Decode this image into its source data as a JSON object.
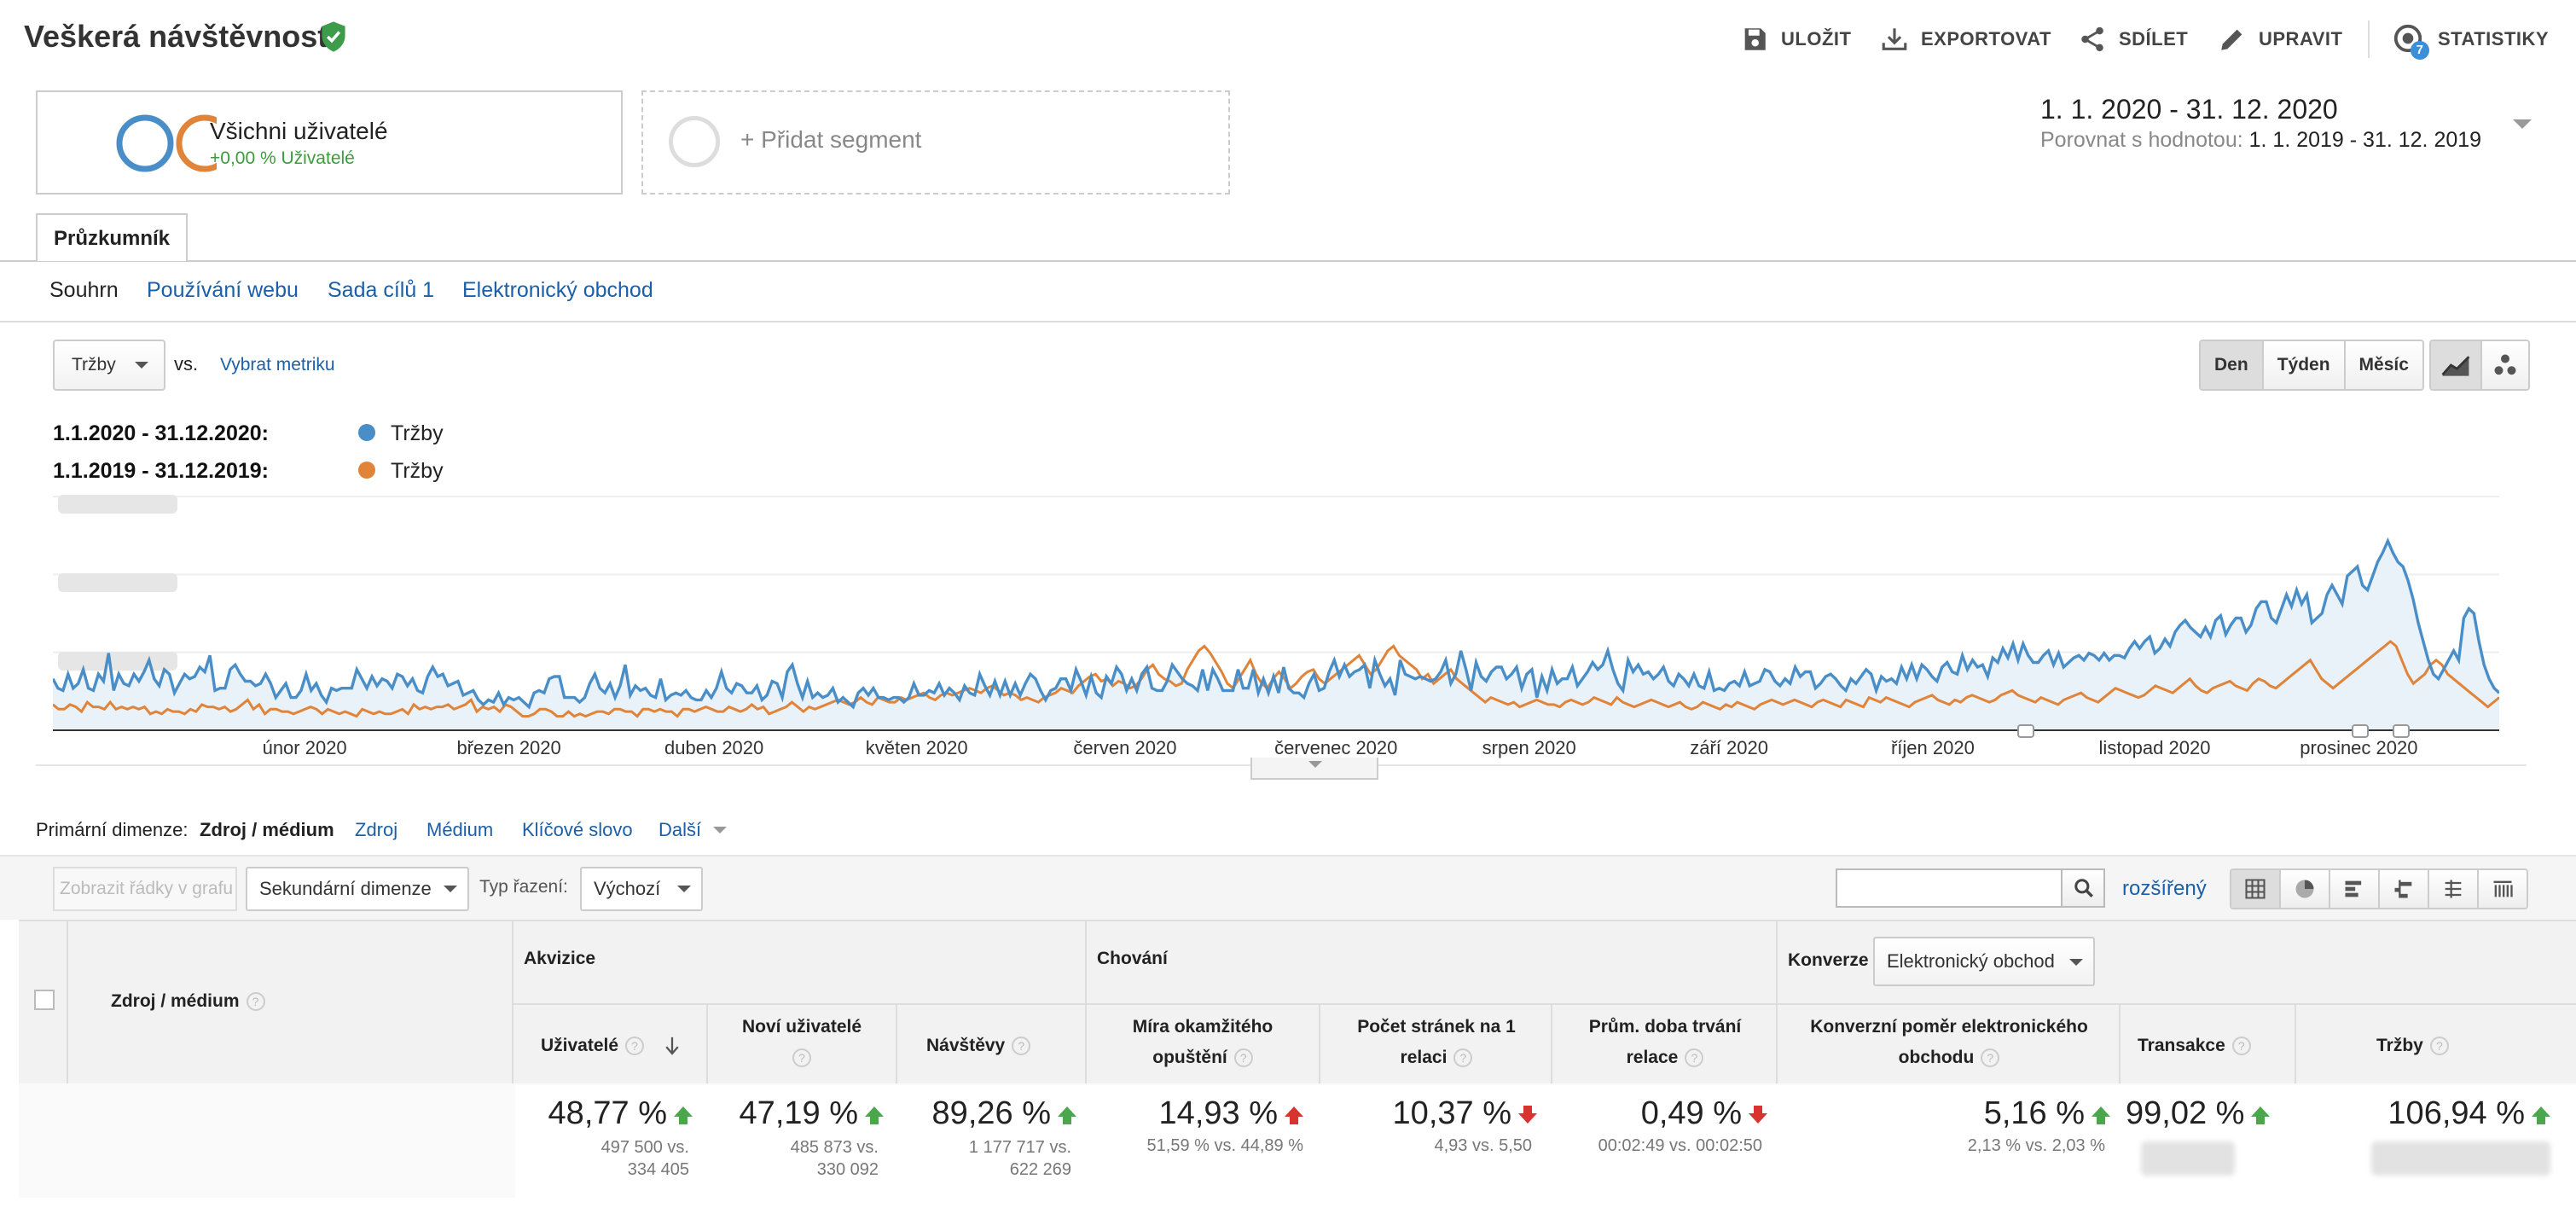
{
  "header": {
    "title": "Veškerá návštěvnost",
    "buttons": {
      "save": "ULOŽIT",
      "export": "EXPORTOVAT",
      "share": "SDÍLET",
      "edit": "UPRAVIT",
      "insights": "STATISTIKY"
    },
    "insights_badge": "7"
  },
  "segments": {
    "active": {
      "name": "Všichni uživatelé",
      "change": "+0,00 % Uživatelé",
      "colors": [
        "#4a90c8",
        "#e08a3c"
      ]
    },
    "add_label": "+ Přidat segment"
  },
  "date_range": {
    "main": "1. 1. 2020 - 31. 12. 2020",
    "compare_label": "Porovnat s hodnotou:",
    "compare_value": "1. 1. 2019 - 31. 12. 2019"
  },
  "tabs": {
    "explorer": "Průzkumník"
  },
  "subtabs": [
    {
      "label": "Souhrn",
      "active": true
    },
    {
      "label": "Používání webu"
    },
    {
      "label": "Sada cílů 1"
    },
    {
      "label": "Elektronický obchod"
    }
  ],
  "chart_controls": {
    "metric": "Tržby",
    "vs": "vs.",
    "pick_metric": "Vybrat metriku",
    "granularity": [
      "Den",
      "Týden",
      "Měsíc"
    ],
    "granularity_active": "Den"
  },
  "legend": [
    {
      "date": "1.1.2020 - 31.12.2020:",
      "name": "Tržby",
      "color": "#4a8ec8"
    },
    {
      "date": "1.1.2019 - 31.12.2019:",
      "name": "Tržby",
      "color": "#e0843a"
    }
  ],
  "chart_data": {
    "type": "line",
    "x_labels": [
      "únor 2020",
      "březen 2020",
      "duben 2020",
      "květen 2020",
      "červen 2020",
      "červenec 2020",
      "srpen 2020",
      "září 2020",
      "říjen 2020",
      "listopad 2020",
      "prosinec 2020"
    ],
    "y_labels_blurred": true,
    "ylim": [
      0,
      100
    ],
    "area_fill": "#e9f1f9",
    "series": [
      {
        "name": "Tržby",
        "color": "#4a8ec8",
        "values": [
          22,
          18,
          17,
          24,
          18,
          20,
          26,
          18,
          17,
          24,
          21,
          33,
          17,
          24,
          20,
          19,
          24,
          21,
          25,
          30,
          22,
          19,
          26,
          24,
          16,
          20,
          24,
          22,
          23,
          27,
          25,
          32,
          17,
          18,
          18,
          26,
          28,
          24,
          21,
          21,
          19,
          20,
          24,
          20,
          14,
          17,
          20,
          14,
          14,
          17,
          24,
          17,
          20,
          15,
          12,
          18,
          17,
          18,
          18,
          18,
          26,
          22,
          18,
          23,
          19,
          22,
          21,
          18,
          24,
          23,
          19,
          22,
          17,
          16,
          23,
          27,
          23,
          24,
          19,
          20,
          21,
          15,
          16,
          17,
          13,
          11,
          13,
          12,
          16,
          11,
          14,
          13,
          14,
          12,
          10,
          16,
          17,
          16,
          22,
          23,
          23,
          14,
          14,
          14,
          12,
          14,
          20,
          24,
          18,
          16,
          20,
          14,
          19,
          28,
          15,
          19,
          17,
          18,
          15,
          14,
          22,
          13,
          15,
          16,
          15,
          17,
          14,
          13,
          13,
          17,
          14,
          18,
          25,
          18,
          16,
          20,
          19,
          16,
          16,
          19,
          13,
          15,
          21,
          20,
          14,
          25,
          28,
          20,
          14,
          21,
          14,
          16,
          14,
          15,
          18,
          12,
          14,
          12,
          10,
          16,
          18,
          15,
          18,
          14,
          14,
          13,
          14,
          14,
          12,
          14,
          20,
          15,
          15,
          17,
          16,
          20,
          15,
          18,
          16,
          13,
          19,
          16,
          15,
          24,
          19,
          15,
          21,
          15,
          21,
          15,
          20,
          15,
          20,
          24,
          22,
          17,
          13,
          17,
          18,
          22,
          22,
          17,
          26,
          21,
          15,
          23,
          16,
          14,
          23,
          20,
          27,
          24,
          17,
          22,
          17,
          24,
          27,
          18,
          17,
          17,
          21,
          28,
          25,
          22,
          20,
          19,
          17,
          26,
          17,
          26,
          22,
          17,
          17,
          17,
          26,
          18,
          18,
          26,
          16,
          22,
          16,
          23,
          16,
          27,
          18,
          16,
          16,
          14,
          20,
          24,
          17,
          18,
          25,
          30,
          23,
          28,
          23,
          25,
          26,
          28,
          18,
          30,
          24,
          19,
          22,
          15,
          30,
          24,
          23,
          22,
          23,
          22,
          21,
          22,
          25,
          30,
          20,
          24,
          34,
          26,
          17,
          29,
          23,
          21,
          25,
          27,
          27,
          22,
          24,
          27,
          18,
          24,
          26,
          14,
          23,
          17,
          26,
          20,
          22,
          22,
          27,
          19,
          22,
          25,
          29,
          26,
          28,
          34,
          26,
          20,
          17,
          30,
          25,
          28,
          24,
          25,
          22,
          24,
          27,
          21,
          19,
          24,
          22,
          19,
          24,
          19,
          18,
          25,
          17,
          18,
          17,
          20,
          21,
          19,
          25,
          19,
          20,
          21,
          26,
          25,
          21,
          19,
          22,
          20,
          27,
          23,
          25,
          25,
          18,
          20,
          23,
          24,
          22,
          19,
          17,
          22,
          20,
          23,
          26,
          24,
          17,
          23,
          21,
          22,
          20,
          27,
          22,
          28,
          22,
          28,
          26,
          23,
          21,
          27,
          29,
          25,
          24,
          32,
          26,
          30,
          27,
          28,
          23,
          31,
          29,
          35,
          31,
          37,
          30,
          37,
          32,
          29,
          29,
          32,
          34,
          28,
          33,
          27,
          29,
          31,
          32,
          30,
          33,
          32,
          30,
          33,
          30,
          32,
          32,
          31,
          35,
          38,
          35,
          38,
          40,
          33,
          35,
          39,
          36,
          42,
          45,
          47,
          44,
          42,
          40,
          44,
          40,
          47,
          49,
          41,
          45,
          48,
          48,
          42,
          45,
          52,
          55,
          55,
          48,
          46,
          52,
          58,
          53,
          60,
          54,
          58,
          46,
          48,
          50,
          58,
          62,
          58,
          54,
          66,
          68,
          70,
          62,
          60,
          66,
          72,
          76,
          81,
          76,
          72,
          70,
          64,
          56,
          46,
          38,
          30,
          24,
          22,
          26,
          30,
          34,
          30,
          48,
          52,
          50,
          38,
          28,
          22,
          18,
          16
        ]
      },
      {
        "name": "Tržby",
        "color": "#e0843a",
        "values": [
          11,
          9,
          9,
          11,
          10,
          8,
          12,
          10,
          10,
          9,
          12,
          9,
          10,
          9,
          10,
          9,
          10,
          7,
          8,
          7,
          9,
          8,
          8,
          7,
          9,
          8,
          11,
          10,
          10,
          9,
          10,
          8,
          9,
          11,
          13,
          9,
          11,
          7,
          9,
          9,
          8,
          8,
          7,
          8,
          9,
          10,
          9,
          7,
          9,
          8,
          7,
          8,
          7,
          6,
          9,
          8,
          7,
          8,
          7,
          7,
          8,
          9,
          7,
          11,
          9,
          10,
          9,
          10,
          10,
          11,
          9,
          10,
          11,
          13,
          8,
          10,
          9,
          10,
          8,
          11,
          10,
          8,
          6,
          6,
          7,
          9,
          9,
          8,
          6,
          6,
          8,
          6,
          7,
          6,
          7,
          8,
          8,
          7,
          9,
          9,
          8,
          8,
          6,
          9,
          9,
          8,
          9,
          8,
          8,
          6,
          9,
          9,
          8,
          9,
          10,
          9,
          8,
          8,
          10,
          9,
          8,
          9,
          11,
          9,
          10,
          7,
          8,
          9,
          10,
          12,
          10,
          8,
          10,
          9,
          10,
          11,
          12,
          13,
          12,
          11,
          12,
          14,
          12,
          11,
          14,
          13,
          12,
          12,
          14,
          13,
          14,
          15,
          16,
          14,
          13,
          15,
          16,
          15,
          16,
          17,
          18,
          17,
          16,
          18,
          19,
          17,
          15,
          16,
          15,
          13,
          14,
          13,
          12,
          14,
          15,
          16,
          18,
          17,
          16,
          19,
          21,
          23,
          24,
          21,
          22,
          19,
          21,
          20,
          18,
          19,
          22,
          26,
          28,
          24,
          22,
          21,
          19,
          20,
          26,
          30,
          34,
          36,
          33,
          29,
          25,
          20,
          18,
          22,
          26,
          30,
          24,
          20,
          18,
          22,
          25,
          22,
          18,
          20,
          23,
          25,
          26,
          22,
          20,
          22,
          24,
          26,
          28,
          30,
          32,
          28,
          24,
          26,
          30,
          34,
          36,
          32,
          30,
          28,
          26,
          22,
          24,
          20,
          22,
          24,
          26,
          22,
          20,
          18,
          16,
          14,
          12,
          14,
          13,
          12,
          11,
          12,
          10,
          11,
          12,
          13,
          12,
          11,
          11,
          10,
          12,
          13,
          12,
          11,
          12,
          14,
          13,
          12,
          11,
          14,
          12,
          11,
          10,
          11,
          12,
          13,
          12,
          11,
          10,
          11,
          12,
          10,
          9,
          10,
          12,
          11,
          10,
          9,
          11,
          10,
          12,
          11,
          10,
          9,
          11,
          12,
          13,
          12,
          11,
          12,
          13,
          12,
          11,
          10,
          12,
          13,
          12,
          11,
          10,
          13,
          12,
          11,
          10,
          14,
          13,
          12,
          14,
          13,
          12,
          11,
          10,
          12,
          13,
          14,
          15,
          13,
          12,
          11,
          13,
          12,
          14,
          15,
          14,
          13,
          12,
          13,
          15,
          16,
          17,
          15,
          14,
          13,
          12,
          14,
          13,
          12,
          11,
          13,
          14,
          15,
          16,
          14,
          13,
          12,
          14,
          16,
          18,
          17,
          16,
          15,
          14,
          15,
          17,
          19,
          18,
          17,
          16,
          18,
          20,
          22,
          19,
          17,
          16,
          18,
          19,
          20,
          21,
          19,
          18,
          17,
          20,
          22,
          21,
          19,
          18,
          20,
          22,
          24,
          26,
          28,
          30,
          26,
          22,
          20,
          18,
          20,
          22,
          24,
          26,
          28,
          30,
          32,
          34,
          36,
          38,
          36,
          30,
          24,
          20,
          22,
          24,
          28,
          30,
          28,
          24,
          22,
          20,
          18,
          16,
          14,
          12,
          10,
          12,
          14
        ]
      }
    ]
  },
  "primary_dimension": {
    "label": "Primární dimenze:",
    "active": "Zdroj / médium",
    "links": [
      "Zdroj",
      "Médium",
      "Klíčové slovo",
      "Další"
    ]
  },
  "toolbar": {
    "plot_rows": "Zobrazit řádky v grafu",
    "secondary_dim": "Sekundární dimenze",
    "sort_label": "Typ řazení:",
    "sort_value": "Výchozí",
    "advanced": "rozšířený"
  },
  "table": {
    "dimension_header": "Zdroj / médium",
    "groups": {
      "acquisition": "Akvizice",
      "behavior": "Chování",
      "conversions": "Konverze"
    },
    "conversions_select": "Elektronický obchod",
    "columns": {
      "users": "Uživatelé",
      "new_users": "Noví uživatelé",
      "sessions": "Návštěvy",
      "bounce_l1": "Míra okamžitého",
      "bounce_l2": "opuštění",
      "pages_l1": "Počet stránek na 1",
      "pages_l2": "relaci",
      "duration_l1": "Prům. doba trvání",
      "duration_l2": "relace",
      "conv_l1": "Konverzní poměr elektronického",
      "conv_l2": "obchodu",
      "transactions": "Transakce",
      "revenue": "Tržby"
    },
    "totals": {
      "users": {
        "value": "48,77 %",
        "sub1": "497 500 vs.",
        "sub2": "334 405"
      },
      "new_users": {
        "value": "47,19 %",
        "sub1": "485 873 vs.",
        "sub2": "330 092"
      },
      "sessions": {
        "value": "89,26 %",
        "sub1": "1 177 717 vs.",
        "sub2": "622 269"
      },
      "bounce": {
        "value": "14,93 %",
        "sub1": "51,59 % vs. 44,89 %"
      },
      "pages": {
        "value": "10,37 %",
        "sub1": "4,93 vs. 5,50"
      },
      "duration": {
        "value": "0,49 %",
        "sub1": "00:02:49 vs. 00:02:50"
      },
      "conv": {
        "value": "5,16 %",
        "sub1": "2,13 % vs. 2,03 %"
      },
      "transactions": {
        "value": "99,02 %"
      },
      "revenue": {
        "value": "106,94 %"
      }
    }
  }
}
